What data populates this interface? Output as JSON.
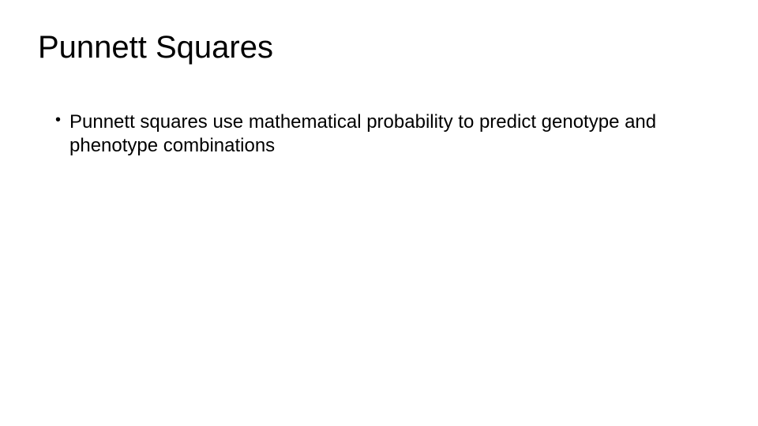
{
  "slide": {
    "title": "Punnett Squares",
    "bullets": [
      "Punnett squares use mathematical probability to predict genotype and phenotype combinations"
    ],
    "background_color": "#ffffff",
    "text_color": "#000000",
    "title_fontsize": 40,
    "title_fontweight": 300,
    "body_fontsize": 24,
    "body_fontweight": 400
  }
}
